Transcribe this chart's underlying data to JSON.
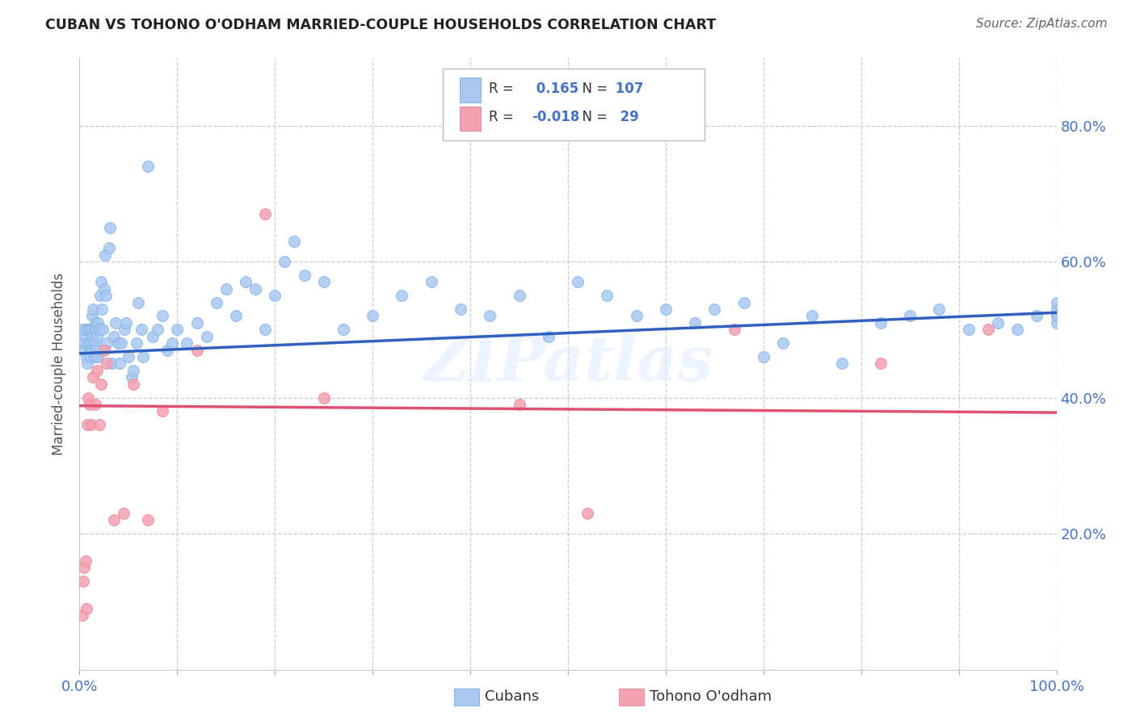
{
  "title": "CUBAN VS TOHONO O'ODHAM MARRIED-COUPLE HOUSEHOLDS CORRELATION CHART",
  "source": "Source: ZipAtlas.com",
  "ylabel": "Married-couple Households",
  "xlim": [
    0,
    1.0
  ],
  "ylim": [
    0,
    0.9
  ],
  "xtick_positions": [
    0.0,
    0.1,
    0.2,
    0.3,
    0.4,
    0.5,
    0.6,
    0.7,
    0.8,
    0.9,
    1.0
  ],
  "xticklabels": [
    "0.0%",
    "",
    "",
    "",
    "",
    "",
    "",
    "",
    "",
    "",
    "100.0%"
  ],
  "ytick_positions": [
    0.2,
    0.4,
    0.6,
    0.8
  ],
  "yticklabels": [
    "20.0%",
    "40.0%",
    "60.0%",
    "80.0%"
  ],
  "R_cuban": 0.165,
  "N_cuban": 107,
  "R_tohono": -0.018,
  "N_tohono": 29,
  "color_cuban": "#a8c8f0",
  "color_tohono": "#f4a0b0",
  "line_cuban": "#3060c0",
  "line_tohono": "#e05070",
  "background": "#ffffff",
  "watermark": "ZIPatlas",
  "cuban_x": [
    0.003,
    0.004,
    0.005,
    0.006,
    0.007,
    0.007,
    0.008,
    0.009,
    0.009,
    0.01,
    0.01,
    0.011,
    0.011,
    0.012,
    0.012,
    0.013,
    0.013,
    0.014,
    0.014,
    0.015,
    0.015,
    0.016,
    0.016,
    0.017,
    0.017,
    0.018,
    0.018,
    0.019,
    0.019,
    0.02,
    0.021,
    0.022,
    0.023,
    0.024,
    0.025,
    0.026,
    0.027,
    0.028,
    0.03,
    0.031,
    0.033,
    0.035,
    0.037,
    0.039,
    0.041,
    0.043,
    0.046,
    0.048,
    0.05,
    0.053,
    0.055,
    0.058,
    0.06,
    0.063,
    0.065,
    0.07,
    0.075,
    0.08,
    0.085,
    0.09,
    0.095,
    0.1,
    0.11,
    0.12,
    0.13,
    0.14,
    0.15,
    0.16,
    0.17,
    0.18,
    0.19,
    0.2,
    0.21,
    0.22,
    0.23,
    0.25,
    0.27,
    0.3,
    0.33,
    0.36,
    0.39,
    0.42,
    0.45,
    0.48,
    0.51,
    0.54,
    0.57,
    0.6,
    0.63,
    0.65,
    0.68,
    0.7,
    0.72,
    0.75,
    0.78,
    0.82,
    0.85,
    0.88,
    0.91,
    0.94,
    0.96,
    0.98,
    1.0,
    1.0,
    1.0,
    1.0,
    1.0
  ],
  "cuban_y": [
    0.5,
    0.48,
    0.47,
    0.49,
    0.5,
    0.46,
    0.45,
    0.48,
    0.5,
    0.47,
    0.5,
    0.46,
    0.48,
    0.47,
    0.5,
    0.49,
    0.52,
    0.48,
    0.53,
    0.46,
    0.5,
    0.48,
    0.51,
    0.5,
    0.47,
    0.46,
    0.49,
    0.51,
    0.46,
    0.5,
    0.55,
    0.57,
    0.53,
    0.5,
    0.56,
    0.61,
    0.55,
    0.48,
    0.62,
    0.65,
    0.45,
    0.49,
    0.51,
    0.48,
    0.45,
    0.48,
    0.5,
    0.51,
    0.46,
    0.43,
    0.44,
    0.48,
    0.54,
    0.5,
    0.46,
    0.74,
    0.49,
    0.5,
    0.52,
    0.47,
    0.48,
    0.5,
    0.48,
    0.51,
    0.49,
    0.54,
    0.56,
    0.52,
    0.57,
    0.56,
    0.5,
    0.55,
    0.6,
    0.63,
    0.58,
    0.57,
    0.5,
    0.52,
    0.55,
    0.57,
    0.53,
    0.52,
    0.55,
    0.49,
    0.57,
    0.55,
    0.52,
    0.53,
    0.51,
    0.53,
    0.54,
    0.46,
    0.48,
    0.52,
    0.45,
    0.51,
    0.52,
    0.53,
    0.5,
    0.51,
    0.5,
    0.52,
    0.52,
    0.53,
    0.51,
    0.54,
    0.52
  ],
  "tohono_x": [
    0.003,
    0.004,
    0.005,
    0.006,
    0.007,
    0.008,
    0.009,
    0.01,
    0.012,
    0.014,
    0.016,
    0.018,
    0.02,
    0.022,
    0.025,
    0.028,
    0.035,
    0.045,
    0.055,
    0.07,
    0.085,
    0.12,
    0.19,
    0.25,
    0.45,
    0.52,
    0.67,
    0.82,
    0.93
  ],
  "tohono_y": [
    0.08,
    0.13,
    0.15,
    0.16,
    0.09,
    0.36,
    0.4,
    0.39,
    0.36,
    0.43,
    0.39,
    0.44,
    0.36,
    0.42,
    0.47,
    0.45,
    0.22,
    0.23,
    0.42,
    0.22,
    0.38,
    0.47,
    0.67,
    0.4,
    0.39,
    0.23,
    0.5,
    0.45,
    0.5
  ],
  "cuban_trend_x0": 0.0,
  "cuban_trend_y0": 0.465,
  "cuban_trend_x1": 1.0,
  "cuban_trend_y1": 0.525,
  "tohono_trend_x0": 0.0,
  "tohono_trend_y0": 0.388,
  "tohono_trend_x1": 1.0,
  "tohono_trend_y1": 0.378
}
